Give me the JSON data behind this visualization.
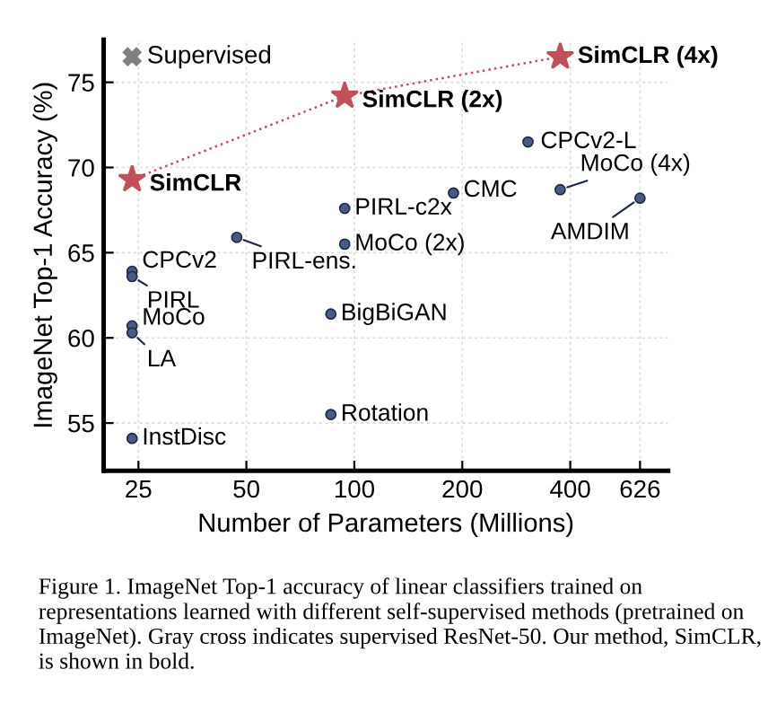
{
  "chart_data": {
    "type": "scatter",
    "xlabel": "Number of Parameters (Millions)",
    "ylabel": "ImageNet Top-1 Accuracy (%)",
    "log": "x",
    "xlim": [
      20,
      750
    ],
    "xticks": [
      25,
      50,
      100,
      200,
      400,
      626
    ],
    "ylim": [
      52.2,
      77.5
    ],
    "yticks": [
      55,
      60,
      65,
      70,
      75
    ],
    "grid": true,
    "series": [
      {
        "name": "Supervised",
        "type": "scatter",
        "color": "#7f7f7f",
        "marker": "cross",
        "x": [
          24
        ],
        "values": [
          76.5
        ]
      },
      {
        "type": "line",
        "color": "#c0505a",
        "marker": "star",
        "line_style": "dotted",
        "x": [
          24,
          94,
          375
        ],
        "values": [
          69.3,
          74.2,
          76.5
        ]
      },
      {
        "color": "#4a5a85",
        "marker": "circle",
        "x": [
          305,
          375,
          626,
          189,
          94,
          94,
          47,
          24,
          24,
          24,
          24,
          86,
          86,
          24
        ],
        "values": [
          71.5,
          68.7,
          68.2,
          68.5,
          67.6,
          65.5,
          65.9,
          63.9,
          63.6,
          60.7,
          60.3,
          61.4,
          55.5,
          54.1
        ]
      }
    ],
    "annotations": [
      {
        "text": "SimCLR",
        "x": 24,
        "y": 69.3
      },
      {
        "text": "SimCLR (2x)",
        "x": 94,
        "y": 74.2
      },
      {
        "text": "SimCLR (4x)",
        "x": 375,
        "y": 76.5
      },
      {
        "text": "CPCv2-L",
        "x": 305,
        "y": 71.5
      },
      {
        "text": "MoCo (4x)",
        "x": 375,
        "y": 68.7
      },
      {
        "text": "AMDIM",
        "x": 626,
        "y": 68.2
      },
      {
        "text": "CMC",
        "x": 189,
        "y": 68.5
      },
      {
        "text": "PIRL-c2x",
        "x": 94,
        "y": 67.6
      },
      {
        "text": "MoCo (2x)",
        "x": 94,
        "y": 65.5
      },
      {
        "text": "PIRL-ens.",
        "x": 47,
        "y": 65.9
      },
      {
        "text": "CPCv2",
        "x": 24,
        "y": 63.9
      },
      {
        "text": "PIRL",
        "x": 24,
        "y": 63.6
      },
      {
        "text": "MoCo",
        "x": 24,
        "y": 60.7
      },
      {
        "text": "LA",
        "x": 24,
        "y": 60.3
      },
      {
        "text": "BigBiGAN",
        "x": 86,
        "y": 61.4
      },
      {
        "text": "Rotation",
        "x": 86,
        "y": 55.5
      },
      {
        "text": "InstDisc",
        "x": 24,
        "y": 54.1
      },
      "Figure 1. ImageNet Top-1 accuracy of linear classifiers trained on representations learned with different self-supervised methods (pretrained on ImageNet). Gray cross indicates supervised ResNet-50. Our method, SimCLR, is shown in bold."
    ]
  }
}
